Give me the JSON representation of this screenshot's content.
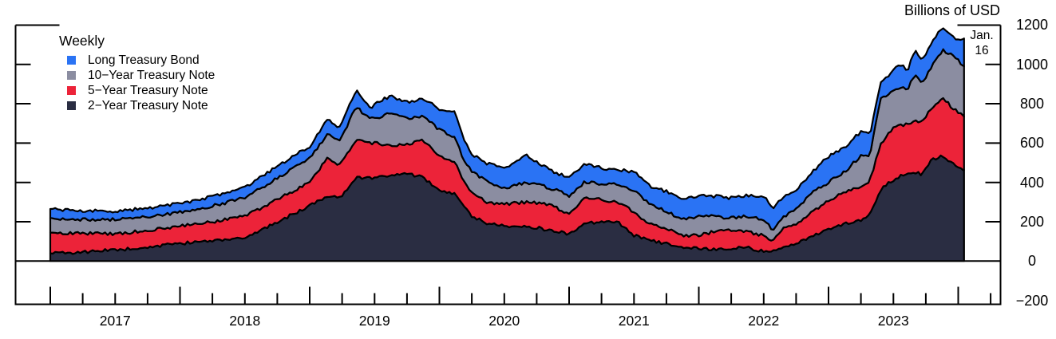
{
  "header": {
    "unit_label": "Billions of USD"
  },
  "annotation": {
    "line1": "Jan.",
    "line2": "16"
  },
  "legend": {
    "heading": "Weekly",
    "items": [
      {
        "label": "Long Treasury Bond",
        "color": "#2a73f4"
      },
      {
        "label": "10−Year Treasury Note",
        "color": "#8b8da1"
      },
      {
        "label": "5−Year Treasury Note",
        "color": "#ec2339"
      },
      {
        "label": "2−Year Treasury Note",
        "color": "#2a2d42"
      }
    ]
  },
  "chart_data": {
    "type": "area",
    "stacked": true,
    "frequency": "Weekly",
    "title": "Billions of USD",
    "ylabel": "Billions of USD",
    "ylim": [
      -200,
      1200
    ],
    "y_ticks": [
      -200,
      0,
      200,
      400,
      600,
      800,
      1000,
      1200
    ],
    "y_tick_labels": [
      "−200",
      "0",
      "200",
      "400",
      "600",
      "800",
      "1000",
      "1200"
    ],
    "x_year_labels": [
      "2017",
      "2018",
      "2019",
      "2020",
      "2021",
      "2022",
      "2023"
    ],
    "x_range_plotted": [
      2017.0,
      2024.045
    ],
    "last_observation_label": "Jan. 16",
    "axis_color": "#000000",
    "outline_color": "#000000",
    "series_order_bottom_to_top": [
      "2-Year Treasury Note",
      "5-Year Treasury Note",
      "10-Year Treasury Note",
      "Long Treasury Bond"
    ],
    "colors": {
      "two_year": "#2a2d42",
      "five_year": "#ec2339",
      "ten_year": "#8b8da1",
      "long_bond": "#2a73f4"
    },
    "noise_amplitude": 8,
    "noise_seed": 42,
    "samples": {
      "t": [
        2017.0,
        2017.25,
        2017.5,
        2017.75,
        2018.0,
        2018.25,
        2018.5,
        2018.75,
        2019.0,
        2019.14,
        2019.23,
        2019.36,
        2019.46,
        2019.53,
        2019.62,
        2019.75,
        2019.87,
        2020.0,
        2020.12,
        2020.18,
        2020.25,
        2020.37,
        2020.5,
        2020.67,
        2020.85,
        2021.0,
        2021.12,
        2021.24,
        2021.37,
        2021.5,
        2021.62,
        2021.75,
        2021.87,
        2022.0,
        2022.12,
        2022.25,
        2022.37,
        2022.5,
        2022.57,
        2022.63,
        2022.75,
        2022.88,
        2023.0,
        2023.12,
        2023.25,
        2023.32,
        2023.4,
        2023.49,
        2023.55,
        2023.61,
        2023.67,
        2023.72,
        2023.79,
        2023.88,
        2023.94,
        2024.0,
        2024.045
      ],
      "two_year": [
        40,
        45,
        57,
        70,
        89,
        106,
        118,
        199,
        280,
        333,
        320,
        430,
        420,
        430,
        430,
        442,
        430,
        353,
        340,
        290,
        227,
        191,
        179,
        179,
        158,
        138,
        191,
        199,
        199,
        130,
        106,
        89,
        69,
        65,
        57,
        65,
        69,
        49,
        45,
        69,
        89,
        130,
        158,
        191,
        211,
        240,
        361,
        410,
        430,
        442,
        450,
        440,
        515,
        536,
        503,
        483,
        463
      ],
      "five_year": [
        105,
        97,
        81,
        85,
        90,
        93,
        109,
        114,
        122,
        190,
        170,
        183,
        180,
        170,
        154,
        155,
        183,
        183,
        160,
        130,
        122,
        109,
        109,
        121,
        130,
        101,
        130,
        114,
        101,
        122,
        81,
        77,
        61,
        65,
        93,
        93,
        81,
        81,
        61,
        89,
        102,
        122,
        151,
        158,
        171,
        170,
        231,
        263,
        260,
        252,
        270,
        260,
        260,
        300,
        284,
        276,
        271
      ],
      "ten_year": [
        75,
        69,
        73,
        70,
        69,
        81,
        94,
        109,
        122,
        122,
        120,
        174,
        120,
        130,
        171,
        130,
        126,
        130,
        130,
        110,
        106,
        102,
        83,
        102,
        85,
        94,
        81,
        81,
        90,
        109,
        101,
        86,
        81,
        97,
        77,
        61,
        77,
        81,
        52,
        53,
        77,
        97,
        93,
        102,
        154,
        130,
        228,
        187,
        190,
        182,
        230,
        205,
        207,
        235,
        264,
        259,
        256
      ],
      "long_bond": [
        45,
        45,
        41,
        45,
        44,
        49,
        52,
        61,
        60,
        81,
        68,
        82,
        57,
        78,
        85,
        81,
        89,
        109,
        125,
        105,
        89,
        93,
        102,
        134,
        90,
        89,
        89,
        81,
        73,
        94,
        94,
        101,
        110,
        106,
        102,
        102,
        106,
        118,
        110,
        102,
        93,
        106,
        130,
        126,
        122,
        100,
        89,
        102,
        122,
        94,
        129,
        113,
        118,
        122,
        102,
        106,
        142
      ]
    }
  }
}
